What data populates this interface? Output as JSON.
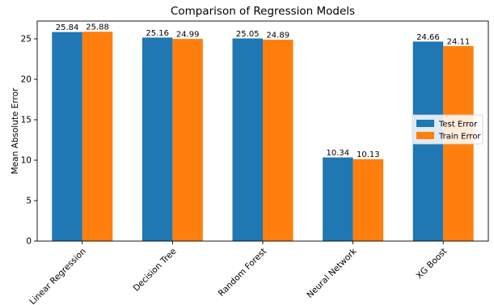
{
  "chart_data": {
    "type": "bar",
    "title": "Comparison of Regression Models",
    "xlabel": "",
    "ylabel": "Mean Absolute Error",
    "categories": [
      "Linear Regression",
      "Decision Tree",
      "Random Forest",
      "Neural Network",
      "XG Boost"
    ],
    "series": [
      {
        "name": "Test Error",
        "color": "#1f77b4",
        "values": [
          25.84,
          25.16,
          25.05,
          10.34,
          24.66
        ]
      },
      {
        "name": "Train Error",
        "color": "#ff7f0e",
        "values": [
          25.88,
          24.99,
          24.89,
          10.13,
          24.11
        ]
      }
    ],
    "data_labels": [
      [
        "25.84",
        "25.16",
        "25.05",
        "10.34",
        "24.66"
      ],
      [
        "25.88",
        "24.99",
        "24.89",
        "10.13",
        "24.11"
      ]
    ],
    "ylim": [
      0,
      27.2
    ],
    "yticks": [
      0,
      5,
      10,
      15,
      20,
      25
    ],
    "ytick_labels": [
      "0",
      "5",
      "10",
      "15",
      "20",
      "25"
    ],
    "grid": false,
    "legend": "center-right"
  }
}
